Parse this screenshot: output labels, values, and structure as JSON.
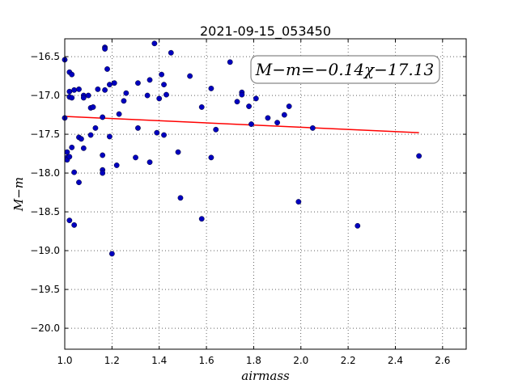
{
  "chart_data": {
    "type": "scatter",
    "title": "2021-09-15_053450",
    "xlabel": "airmass",
    "ylabel": "M−m",
    "xlim": [
      1.0,
      2.7
    ],
    "ylim": [
      -20.27,
      -16.27
    ],
    "y_inverted": true,
    "grid": true,
    "x_ticks": [
      1.0,
      1.2,
      1.4,
      1.6,
      1.8,
      2.0,
      2.2,
      2.4,
      2.6
    ],
    "x_tick_labels": [
      "1.0",
      "1.2",
      "1.4",
      "1.6",
      "1.8",
      "2.0",
      "2.2",
      "2.4",
      "2.6"
    ],
    "y_ticks": [
      -16.5,
      -17.0,
      -17.5,
      -18.0,
      -18.5,
      -19.0,
      -19.5,
      -20.0
    ],
    "y_tick_labels": [
      "−16.5",
      "−17.0",
      "−17.5",
      "−18.0",
      "−18.5",
      "−19.0",
      "−19.5",
      "−20.0"
    ],
    "annotation": "M−m=−0.14χ−17.13",
    "annotation_placement": "top-right",
    "marker_color": "#0000bf",
    "fit_line": {
      "color": "#ff0000",
      "slope": -0.14,
      "intercept": -17.13,
      "x_range": [
        1.0,
        2.5
      ]
    },
    "points": [
      {
        "x": 1.0,
        "y": -16.54
      },
      {
        "x": 1.0,
        "y": -17.29
      },
      {
        "x": 1.01,
        "y": -17.73
      },
      {
        "x": 1.01,
        "y": -17.8
      },
      {
        "x": 1.01,
        "y": -17.83
      },
      {
        "x": 1.02,
        "y": -17.79
      },
      {
        "x": 1.02,
        "y": -16.7
      },
      {
        "x": 1.02,
        "y": -17.02
      },
      {
        "x": 1.02,
        "y": -16.95
      },
      {
        "x": 1.02,
        "y": -18.61
      },
      {
        "x": 1.03,
        "y": -16.73
      },
      {
        "x": 1.03,
        "y": -17.03
      },
      {
        "x": 1.03,
        "y": -17.67
      },
      {
        "x": 1.04,
        "y": -17.99
      },
      {
        "x": 1.04,
        "y": -18.67
      },
      {
        "x": 1.04,
        "y": -16.93
      },
      {
        "x": 1.06,
        "y": -16.92
      },
      {
        "x": 1.06,
        "y": -17.54
      },
      {
        "x": 1.06,
        "y": -18.12
      },
      {
        "x": 1.07,
        "y": -17.56
      },
      {
        "x": 1.08,
        "y": -17.0
      },
      {
        "x": 1.08,
        "y": -17.03
      },
      {
        "x": 1.08,
        "y": -17.68
      },
      {
        "x": 1.1,
        "y": -17.0
      },
      {
        "x": 1.11,
        "y": -17.16
      },
      {
        "x": 1.11,
        "y": -17.51
      },
      {
        "x": 1.12,
        "y": -17.15
      },
      {
        "x": 1.13,
        "y": -17.42
      },
      {
        "x": 1.14,
        "y": -16.92
      },
      {
        "x": 1.16,
        "y": -17.28
      },
      {
        "x": 1.16,
        "y": -17.77
      },
      {
        "x": 1.16,
        "y": -17.96
      },
      {
        "x": 1.16,
        "y": -18.0
      },
      {
        "x": 1.17,
        "y": -16.38
      },
      {
        "x": 1.17,
        "y": -16.4
      },
      {
        "x": 1.17,
        "y": -16.93
      },
      {
        "x": 1.18,
        "y": -16.66
      },
      {
        "x": 1.19,
        "y": -16.86
      },
      {
        "x": 1.19,
        "y": -17.53
      },
      {
        "x": 1.2,
        "y": -19.04
      },
      {
        "x": 1.21,
        "y": -16.84
      },
      {
        "x": 1.22,
        "y": -17.9
      },
      {
        "x": 1.23,
        "y": -17.24
      },
      {
        "x": 1.25,
        "y": -17.07
      },
      {
        "x": 1.26,
        "y": -16.97
      },
      {
        "x": 1.3,
        "y": -17.8
      },
      {
        "x": 1.31,
        "y": -16.84
      },
      {
        "x": 1.31,
        "y": -17.42
      },
      {
        "x": 1.35,
        "y": -17.0
      },
      {
        "x": 1.36,
        "y": -16.8
      },
      {
        "x": 1.36,
        "y": -17.86
      },
      {
        "x": 1.38,
        "y": -16.33
      },
      {
        "x": 1.39,
        "y": -17.48
      },
      {
        "x": 1.4,
        "y": -17.04
      },
      {
        "x": 1.41,
        "y": -16.73
      },
      {
        "x": 1.42,
        "y": -17.51
      },
      {
        "x": 1.42,
        "y": -16.86
      },
      {
        "x": 1.43,
        "y": -16.99
      },
      {
        "x": 1.45,
        "y": -16.45
      },
      {
        "x": 1.48,
        "y": -17.73
      },
      {
        "x": 1.49,
        "y": -18.32
      },
      {
        "x": 1.53,
        "y": -16.75
      },
      {
        "x": 1.58,
        "y": -17.15
      },
      {
        "x": 1.58,
        "y": -18.59
      },
      {
        "x": 1.62,
        "y": -16.91
      },
      {
        "x": 1.62,
        "y": -17.8
      },
      {
        "x": 1.64,
        "y": -17.44
      },
      {
        "x": 1.7,
        "y": -16.57
      },
      {
        "x": 1.73,
        "y": -17.08
      },
      {
        "x": 1.75,
        "y": -16.96
      },
      {
        "x": 1.75,
        "y": -16.99
      },
      {
        "x": 1.78,
        "y": -17.14
      },
      {
        "x": 1.79,
        "y": -17.37
      },
      {
        "x": 1.81,
        "y": -17.04
      },
      {
        "x": 1.86,
        "y": -17.29
      },
      {
        "x": 1.9,
        "y": -17.35
      },
      {
        "x": 1.93,
        "y": -17.25
      },
      {
        "x": 1.95,
        "y": -17.14
      },
      {
        "x": 1.99,
        "y": -18.37
      },
      {
        "x": 2.05,
        "y": -17.42
      },
      {
        "x": 2.24,
        "y": -18.68
      },
      {
        "x": 2.5,
        "y": -17.78
      }
    ]
  }
}
